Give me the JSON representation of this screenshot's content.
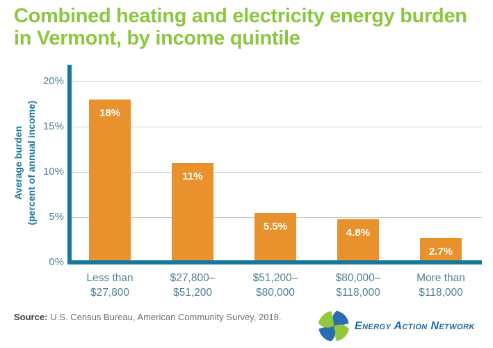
{
  "title": "Combined heating and electricity energy burden in Vermont, by income quintile",
  "chart_data": {
    "type": "bar",
    "title": "Combined heating and electricity energy burden in Vermont, by income quintile",
    "categories": [
      "Less than\n$27,800",
      "$27,800–\n$51,200",
      "$51,200–\n$80,000",
      "$80,000–\n$118,000",
      "More than\n$118,000"
    ],
    "values": [
      18,
      11,
      5.5,
      4.8,
      2.7
    ],
    "bar_labels": [
      "18%",
      "11%",
      "5.5%",
      "4.8%",
      "2.7%"
    ],
    "ylabel": "Average burden\n(percent of annual income)",
    "xlabel": "",
    "yticks": [
      0,
      5,
      10,
      15,
      20
    ],
    "ytick_labels": [
      "0%",
      "5%",
      "10%",
      "15%",
      "20%"
    ],
    "ylim": [
      0,
      20
    ],
    "grid": true,
    "legend": false,
    "bar_color": "#e8912d",
    "axis_color": "#16789b"
  },
  "source": {
    "label": "Source:",
    "text": "U.S. Census Bureau, American Community Survey, 2018."
  },
  "logo": {
    "name": "Energy Action Network",
    "icon": "pinwheel-globe-icon",
    "text_color": "#1b689c",
    "mark_blue": "#2a6db0",
    "mark_green": "#93c83d"
  },
  "colors": {
    "title_green": "#8dc63f",
    "bar_orange": "#e8912d",
    "axis_teal": "#16789b",
    "tick_teal": "#4d8195",
    "grid_gray": "#c9cacb",
    "bar_label_white": "#ffffff",
    "source_gray": "#6d6e71",
    "source_dark": "#414042"
  }
}
